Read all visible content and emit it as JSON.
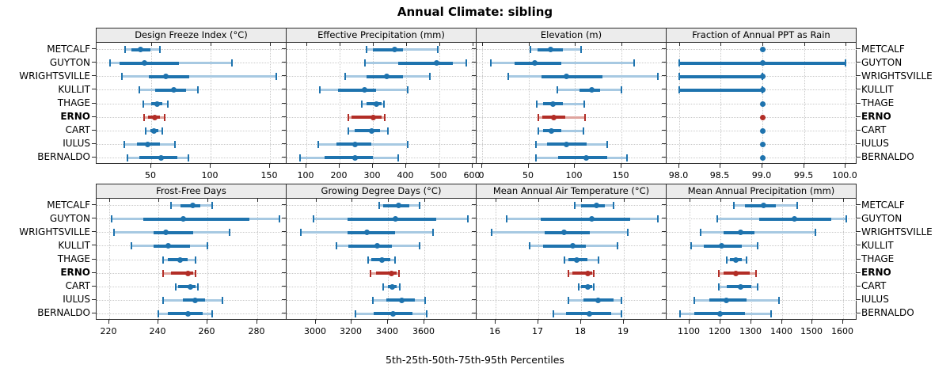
{
  "colors": {
    "normal": "#1e73ae",
    "normal_light": "#a7c9e2",
    "highlight": "#b22d26",
    "highlight_light": "#dfa49e",
    "grid": "#c9c9c9",
    "strip_bg": "#ececec",
    "border": "#2b2b2b"
  },
  "chart_data": {
    "type": "dotplot-percentile-intervals",
    "title": "Annual Climate: sibling",
    "caption": "5th-25th-50th-75th-95th Percentiles",
    "percentiles": [
      "5th",
      "25th",
      "50th",
      "75th",
      "95th"
    ],
    "stations": [
      "METCALF",
      "GUYTON",
      "WRIGHTSVILLE",
      "KULLIT",
      "THAGE",
      "ERNO",
      "CART",
      "IULUS",
      "BERNALDO"
    ],
    "highlight_station": "ERNO",
    "legend_position": "none",
    "grid": "dotted",
    "panels": [
      {
        "title": "Design Freeze Index (°C)",
        "xlim": [
          4,
          164
        ],
        "ticks": [
          50,
          100,
          150
        ],
        "tick_labels": [
          "50",
          "100",
          "150"
        ],
        "values": {
          "METCALF": [
            28,
            33,
            41,
            49,
            57
          ],
          "GUYTON": [
            15,
            23,
            44,
            73,
            118
          ],
          "WRIGHTSVILLE": [
            25,
            48,
            62,
            82,
            155
          ],
          "KULLIT": [
            40,
            53,
            69,
            79,
            89
          ],
          "THAGE": [
            43,
            50,
            55,
            59,
            64
          ],
          "ERNO": [
            44,
            47,
            53,
            57,
            61
          ],
          "CART": [
            45,
            49,
            52,
            56,
            59
          ],
          "IULUS": [
            27,
            38,
            47,
            57,
            70
          ],
          "BERNALDO": [
            30,
            40,
            58,
            72,
            81
          ]
        }
      },
      {
        "title": "Effective Precipitation (mm)",
        "xlim": [
          40,
          611
        ],
        "ticks": [
          100,
          200,
          300,
          400,
          500,
          600
        ],
        "tick_labels": [
          "100",
          "200",
          "300",
          "400",
          "500",
          "600"
        ],
        "values": {
          "METCALF": [
            280,
            300,
            365,
            390,
            495
          ],
          "GUYTON": [
            275,
            375,
            490,
            540,
            580
          ],
          "WRIGHTSVILLE": [
            215,
            280,
            340,
            390,
            470
          ],
          "KULLIT": [
            140,
            195,
            275,
            310,
            405
          ],
          "THAGE": [
            265,
            280,
            310,
            325,
            332
          ],
          "ERNO": [
            225,
            235,
            300,
            325,
            335
          ],
          "CART": [
            225,
            245,
            295,
            320,
            345
          ],
          "IULUS": [
            135,
            190,
            245,
            295,
            405
          ],
          "BERNALDO": [
            80,
            155,
            245,
            300,
            375
          ]
        }
      },
      {
        "title": "Elevation (m)",
        "xlim": [
          -6,
          199
        ],
        "ticks": [
          0,
          50,
          100,
          150
        ],
        "tick_labels": [
          "0",
          "50",
          "100",
          "150"
        ],
        "values": {
          "METCALF": [
            52,
            60,
            74,
            87,
            107
          ],
          "GUYTON": [
            9,
            35,
            57,
            85,
            164
          ],
          "WRIGHTSVILLE": [
            28,
            64,
            91,
            130,
            190
          ],
          "KULLIT": [
            81,
            105,
            118,
            127,
            150
          ],
          "THAGE": [
            59,
            66,
            76,
            87,
            110
          ],
          "ERNO": [
            61,
            65,
            77,
            90,
            111
          ],
          "CART": [
            61,
            66,
            75,
            85,
            109
          ],
          "IULUS": [
            58,
            70,
            91,
            113,
            135
          ],
          "BERNALDO": [
            58,
            82,
            112,
            135,
            156
          ]
        }
      },
      {
        "title": "Fraction of Annual PPT as Rain",
        "xlim": [
          97.85,
          100.13
        ],
        "ticks": [
          98.0,
          98.5,
          99.0,
          99.5,
          100.0
        ],
        "tick_labels": [
          "98.0",
          "98.5",
          "99.0",
          "99.5",
          "100.0"
        ],
        "values": {
          "METCALF": [
            99,
            99,
            99,
            99,
            99
          ],
          "GUYTON": [
            98,
            98,
            99,
            100,
            100
          ],
          "WRIGHTSVILLE": [
            98,
            98,
            99,
            99,
            99
          ],
          "KULLIT": [
            98,
            98,
            99,
            99,
            99
          ],
          "THAGE": [
            99,
            99,
            99,
            99,
            99
          ],
          "ERNO": [
            99,
            99,
            99,
            99,
            99
          ],
          "CART": [
            99,
            99,
            99,
            99,
            99
          ],
          "IULUS": [
            99,
            99,
            99,
            99,
            99
          ],
          "BERNALDO": [
            99,
            99,
            99,
            99,
            99
          ]
        }
      },
      {
        "title": "Frost-Free Days",
        "xlim": [
          215,
          292
        ],
        "ticks": [
          220,
          240,
          260,
          280
        ],
        "tick_labels": [
          "220",
          "240",
          "260",
          "280"
        ],
        "values": {
          "METCALF": [
            245,
            249,
            254,
            257,
            262
          ],
          "GUYTON": [
            221,
            234,
            250,
            277,
            289
          ],
          "WRIGHTSVILLE": [
            222,
            238,
            243,
            254,
            269
          ],
          "KULLIT": [
            229,
            238,
            244,
            253,
            260
          ],
          "THAGE": [
            242,
            244,
            249,
            252,
            255
          ],
          "ERNO": [
            242,
            245,
            252,
            254,
            255
          ],
          "CART": [
            247,
            248,
            253,
            255,
            256
          ],
          "IULUS": [
            242,
            250,
            255,
            259,
            266
          ],
          "BERNALDO": [
            240,
            244,
            252,
            258,
            262
          ]
        }
      },
      {
        "title": "Growing Degree Days (°C)",
        "xlim": [
          2840,
          3890
        ],
        "ticks": [
          3000,
          3200,
          3400,
          3600
        ],
        "tick_labels": [
          "3000",
          "3200",
          "3400",
          "3600"
        ],
        "values": {
          "METCALF": [
            3350,
            3375,
            3460,
            3520,
            3575
          ],
          "GUYTON": [
            2990,
            3175,
            3440,
            3665,
            3840
          ],
          "WRIGHTSVILLE": [
            2920,
            3175,
            3285,
            3440,
            3650
          ],
          "KULLIT": [
            3115,
            3180,
            3340,
            3420,
            3575
          ],
          "THAGE": [
            3290,
            3310,
            3365,
            3415,
            3440
          ],
          "ERNO": [
            3305,
            3335,
            3420,
            3450,
            3460
          ],
          "CART": [
            3375,
            3400,
            3425,
            3450,
            3465
          ],
          "IULUS": [
            3315,
            3390,
            3475,
            3550,
            3605
          ],
          "BERNALDO": [
            3220,
            3320,
            3430,
            3535,
            3615
          ]
        }
      },
      {
        "title": "Mean Annual Air Temperature (°C)",
        "xlim": [
          15.55,
          20.0
        ],
        "ticks": [
          16,
          17,
          18,
          19
        ],
        "tick_labels": [
          "16",
          "17",
          "18",
          "19"
        ],
        "values": {
          "METCALF": [
            17.85,
            18.0,
            18.35,
            18.55,
            18.75
          ],
          "GUYTON": [
            16.25,
            17.05,
            18.25,
            19.15,
            19.8
          ],
          "WRIGHTSVILLE": [
            15.9,
            17.15,
            17.6,
            18.2,
            19.1
          ],
          "KULLIT": [
            16.8,
            17.1,
            17.8,
            18.1,
            18.85
          ],
          "THAGE": [
            17.6,
            17.7,
            17.9,
            18.15,
            18.4
          ],
          "ERNO": [
            17.7,
            17.8,
            18.15,
            18.25,
            18.3
          ],
          "CART": [
            17.95,
            18.0,
            18.15,
            18.25,
            18.3
          ],
          "IULUS": [
            17.7,
            18.05,
            18.4,
            18.75,
            18.95
          ],
          "BERNALDO": [
            17.35,
            17.65,
            18.2,
            18.7,
            18.95
          ]
        }
      },
      {
        "title": "Mean Annual Precipitation (mm)",
        "xlim": [
          1025,
          1643
        ],
        "ticks": [
          1100,
          1200,
          1300,
          1400,
          1500,
          1600
        ],
        "tick_labels": [
          "1100",
          "1200",
          "1300",
          "1400",
          "1500",
          "1600"
        ],
        "values": {
          "METCALF": [
            1245,
            1280,
            1340,
            1380,
            1450
          ],
          "GUYTON": [
            1190,
            1325,
            1440,
            1560,
            1610
          ],
          "WRIGHTSVILLE": [
            1135,
            1210,
            1265,
            1310,
            1510
          ],
          "KULLIT": [
            1105,
            1145,
            1205,
            1270,
            1320
          ],
          "THAGE": [
            1220,
            1230,
            1250,
            1270,
            1285
          ],
          "ERNO": [
            1195,
            1210,
            1250,
            1295,
            1315
          ],
          "CART": [
            1195,
            1220,
            1265,
            1300,
            1320
          ],
          "IULUS": [
            1115,
            1165,
            1220,
            1285,
            1390
          ],
          "BERNALDO": [
            1070,
            1115,
            1200,
            1280,
            1365
          ]
        }
      }
    ]
  }
}
